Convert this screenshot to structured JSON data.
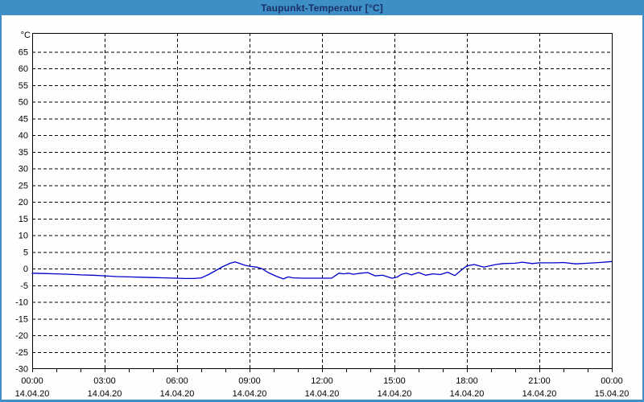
{
  "window": {
    "titlebar_bg": "#3d8fc6",
    "title_text_color": "#1b2f66",
    "frame_color": "#3d8fc6",
    "plot_bg": "#fdfefd"
  },
  "chart_data": {
    "type": "line",
    "title": "Taupunkt-Temperatur [°C]",
    "grid": "dashed",
    "legend": "none",
    "colors": {
      "line": "#0000cc",
      "grid": "#000000",
      "axis": "#000000",
      "label_text": "#000000"
    },
    "y_axis": {
      "unit_label": "°C",
      "tick_labels": [
        65,
        60,
        55,
        50,
        45,
        40,
        35,
        30,
        25,
        20,
        15,
        10,
        5,
        0,
        -5,
        -10,
        -15,
        -20,
        -25,
        -30
      ],
      "tick_step": 5,
      "range_min": -30,
      "range_max": 70.5
    },
    "x_axis": {
      "hours_span": 24,
      "minor_tick_step_h": 1,
      "major_tick_step_h": 3,
      "ticks": [
        {
          "h": 0,
          "time": "00:00",
          "date": "14.04.20"
        },
        {
          "h": 3,
          "time": "03:00",
          "date": "14.04.20"
        },
        {
          "h": 6,
          "time": "06:00",
          "date": "14.04.20"
        },
        {
          "h": 9,
          "time": "09:00",
          "date": "14.04.20"
        },
        {
          "h": 12,
          "time": "12:00",
          "date": "14.04.20"
        },
        {
          "h": 15,
          "time": "15:00",
          "date": "14.04.20"
        },
        {
          "h": 18,
          "time": "18:00",
          "date": "14.04.20"
        },
        {
          "h": 21,
          "time": "21:00",
          "date": "14.04.20"
        },
        {
          "h": 24,
          "time": "00:00",
          "date": "15.04.20"
        }
      ]
    },
    "series": [
      {
        "name": "Taupunkt-Temperatur",
        "color": "#0000cc",
        "points": [
          [
            0,
            -1.4
          ],
          [
            0.5,
            -1.5
          ],
          [
            1,
            -1.6
          ],
          [
            1.5,
            -1.7
          ],
          [
            2,
            -1.9
          ],
          [
            2.5,
            -2.0
          ],
          [
            3,
            -2.2
          ],
          [
            3.5,
            -2.4
          ],
          [
            4,
            -2.5
          ],
          [
            4.5,
            -2.6
          ],
          [
            5,
            -2.7
          ],
          [
            5.5,
            -2.8
          ],
          [
            6,
            -2.9
          ],
          [
            6.3,
            -3.0
          ],
          [
            6.7,
            -3.0
          ],
          [
            7,
            -2.8
          ],
          [
            7.3,
            -1.8
          ],
          [
            7.6,
            -0.6
          ],
          [
            7.9,
            0.6
          ],
          [
            8.2,
            1.6
          ],
          [
            8.4,
            2.0
          ],
          [
            8.6,
            1.5
          ],
          [
            8.8,
            1.0
          ],
          [
            9,
            0.7
          ],
          [
            9.3,
            0.4
          ],
          [
            9.5,
            0.0
          ],
          [
            9.8,
            -1.3
          ],
          [
            10.1,
            -2.3
          ],
          [
            10.4,
            -3.1
          ],
          [
            10.6,
            -2.5
          ],
          [
            10.8,
            -2.8
          ],
          [
            11.2,
            -2.9
          ],
          [
            11.6,
            -2.9
          ],
          [
            12,
            -2.9
          ],
          [
            12.4,
            -2.9
          ],
          [
            12.7,
            -1.4
          ],
          [
            12.9,
            -1.6
          ],
          [
            13.1,
            -1.4
          ],
          [
            13.3,
            -1.7
          ],
          [
            13.6,
            -1.4
          ],
          [
            13.9,
            -1.2
          ],
          [
            14.2,
            -2.2
          ],
          [
            14.5,
            -2.0
          ],
          [
            14.9,
            -2.9
          ],
          [
            15.1,
            -2.6
          ],
          [
            15.3,
            -1.7
          ],
          [
            15.5,
            -1.4
          ],
          [
            15.7,
            -1.9
          ],
          [
            16,
            -1.2
          ],
          [
            16.3,
            -2.0
          ],
          [
            16.6,
            -1.6
          ],
          [
            16.9,
            -1.8
          ],
          [
            17.2,
            -1.1
          ],
          [
            17.5,
            -2.1
          ],
          [
            17.8,
            -0.3
          ],
          [
            18,
            0.8
          ],
          [
            18.3,
            1.2
          ],
          [
            18.7,
            0.4
          ],
          [
            19.2,
            1.2
          ],
          [
            19.5,
            1.5
          ],
          [
            20,
            1.6
          ],
          [
            20.3,
            1.9
          ],
          [
            20.7,
            1.5
          ],
          [
            21,
            1.7
          ],
          [
            21.7,
            1.7
          ],
          [
            22,
            1.8
          ],
          [
            22.5,
            1.4
          ],
          [
            23,
            1.6
          ],
          [
            23.5,
            1.8
          ],
          [
            24,
            2.1
          ]
        ]
      }
    ]
  }
}
